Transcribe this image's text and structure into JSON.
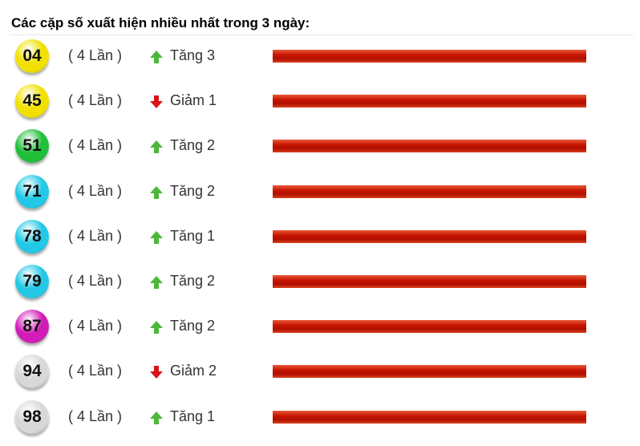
{
  "title": "Các cặp số xuất hiện nhiều nhất trong 3 ngày:",
  "rows": [
    {
      "number": "04",
      "count": "( 4 Lần )",
      "trend": "Tăng 3",
      "direction": "up",
      "ball": "#f2e000"
    },
    {
      "number": "45",
      "count": "( 4 Lần )",
      "trend": "Giảm 1",
      "direction": "down",
      "ball": "#f2e000"
    },
    {
      "number": "51",
      "count": "( 4 Lần )",
      "trend": "Tăng 2",
      "direction": "up",
      "ball": "#1fbf3a"
    },
    {
      "number": "71",
      "count": "( 4 Lần )",
      "trend": "Tăng 2",
      "direction": "up",
      "ball": "#22c8e6"
    },
    {
      "number": "78",
      "count": "( 4 Lần )",
      "trend": "Tăng 1",
      "direction": "up",
      "ball": "#22c8e6"
    },
    {
      "number": "79",
      "count": "( 4 Lần )",
      "trend": "Tăng 2",
      "direction": "up",
      "ball": "#22c8e6"
    },
    {
      "number": "87",
      "count": "( 4 Lần )",
      "trend": "Tăng 2",
      "direction": "up",
      "ball": "#d21cb8"
    },
    {
      "number": "94",
      "count": "( 4 Lần )",
      "trend": "Giảm 2",
      "direction": "down",
      "ball": "#d8d8d8"
    },
    {
      "number": "98",
      "count": "( 4 Lần )",
      "trend": "Tăng 1",
      "direction": "up",
      "ball": "#d8d8d8"
    }
  ]
}
